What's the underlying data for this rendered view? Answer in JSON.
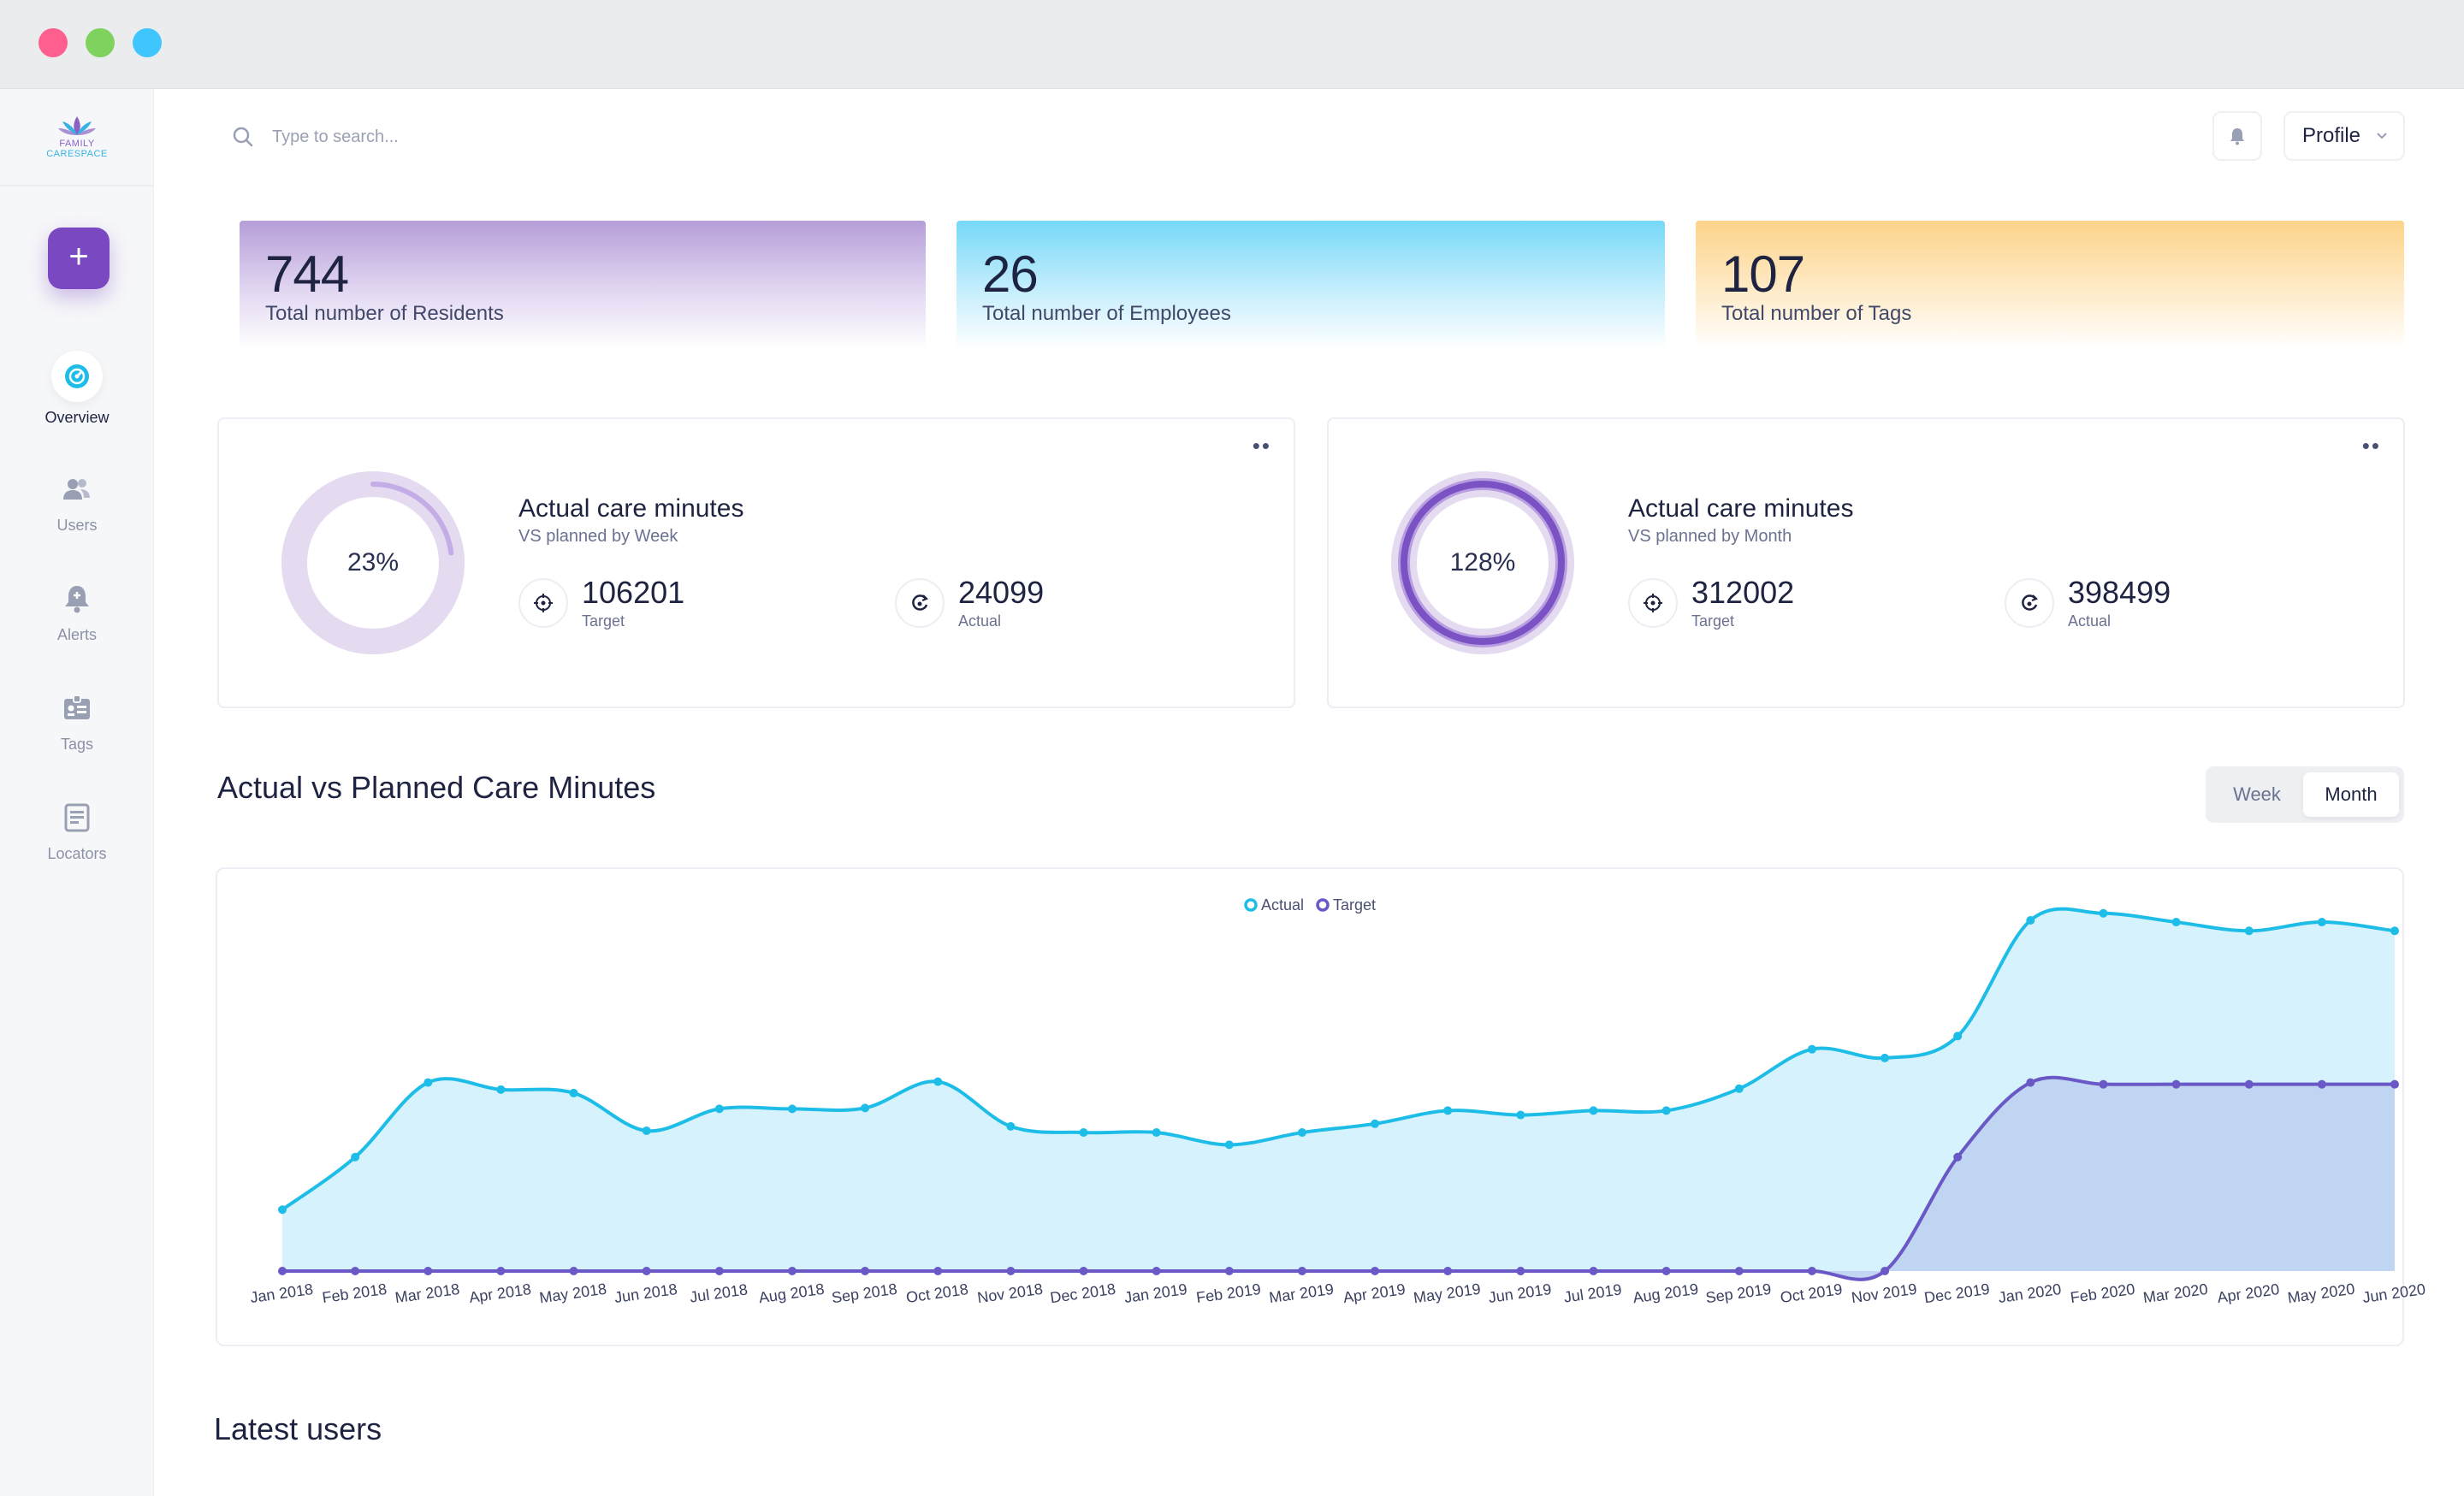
{
  "window": {
    "controls": [
      "close",
      "minimize",
      "maximize"
    ]
  },
  "sidebar": {
    "logo": {
      "line1": "FAMILY",
      "line2": "CARESPACE"
    },
    "add_label": "+",
    "items": [
      {
        "label": "Overview",
        "icon": "dashboard-icon",
        "active": true
      },
      {
        "label": "Users",
        "icon": "users-icon",
        "active": false
      },
      {
        "label": "Alerts",
        "icon": "alert-bell-icon",
        "active": false
      },
      {
        "label": "Tags",
        "icon": "tag-card-icon",
        "active": false
      },
      {
        "label": "Locators",
        "icon": "document-icon",
        "active": false
      }
    ]
  },
  "header": {
    "search_placeholder": "Type to search...",
    "profile_label": "Profile"
  },
  "stats": [
    {
      "value": "744",
      "label": "Total number of Residents",
      "color": "#b59ed8"
    },
    {
      "value": "26",
      "label": "Total number of Employees",
      "color": "#76d8f8"
    },
    {
      "value": "107",
      "label": "Total number of Tags",
      "color": "#fdd38a"
    }
  ],
  "care_cards": [
    {
      "percent_label": "23%",
      "percent_value": 23,
      "title": "Actual care minutes",
      "subtitle": "VS planned by Week",
      "target_value": "106201",
      "target_label": "Target",
      "actual_value": "24099",
      "actual_label": "Actual",
      "more": "••"
    },
    {
      "percent_label": "128%",
      "percent_value": 128,
      "title": "Actual care minutes",
      "subtitle": "VS planned by Month",
      "target_value": "312002",
      "target_label": "Target",
      "actual_value": "398499",
      "actual_label": "Actual",
      "more": "••"
    }
  ],
  "chart_section": {
    "title": "Actual vs Planned Care Minutes",
    "toggle": {
      "week": "Week",
      "month": "Month",
      "selected": "Month"
    }
  },
  "chart_data": {
    "type": "area",
    "title": "",
    "xlabel": "",
    "ylabel": "",
    "x": [
      "Jan 2018",
      "Feb 2018",
      "Mar 2018",
      "Apr 2018",
      "May 2018",
      "Jun 2018",
      "Jul 2018",
      "Aug 2018",
      "Sep 2018",
      "Oct 2018",
      "Nov 2018",
      "Dec 2018",
      "Jan 2019",
      "Feb 2019",
      "Mar 2019",
      "Apr 2019",
      "May 2019",
      "Jun 2019",
      "Jul 2019",
      "Aug 2019",
      "Sep 2019",
      "Oct 2019",
      "Nov 2019",
      "Dec 2019",
      "Jan 2020",
      "Feb 2020",
      "Mar 2020",
      "Apr 2020",
      "May 2020",
      "Jun 2020"
    ],
    "ylim": [
      0,
      400
    ],
    "legend": "top-center",
    "grid": false,
    "series": [
      {
        "name": "Actual",
        "color": "#1ebde8",
        "fill": "#d6f2fc",
        "values": [
          70,
          130,
          215,
          207,
          203,
          160,
          185,
          185,
          186,
          216,
          165,
          158,
          158,
          144,
          158,
          168,
          183,
          178,
          183,
          183,
          208,
          253,
          243,
          268,
          400,
          408,
          398,
          388,
          398,
          388
        ]
      },
      {
        "name": "Target",
        "color": "#6a58c6",
        "fill": "#bcd2f0",
        "values": [
          0,
          0,
          0,
          0,
          0,
          0,
          0,
          0,
          0,
          0,
          0,
          0,
          0,
          0,
          0,
          0,
          0,
          0,
          0,
          0,
          0,
          0,
          0,
          130,
          215,
          213,
          213,
          213,
          213,
          213
        ]
      }
    ]
  },
  "latest_users": {
    "title": "Latest users"
  }
}
